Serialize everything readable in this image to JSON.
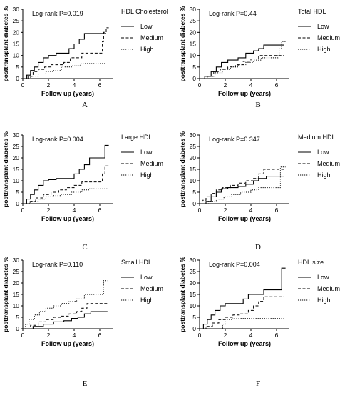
{
  "chart_data": [
    {
      "type": "line",
      "panel_label": "A",
      "annotation": "Log-rank P=0.019",
      "legend_title": "HDL Cholesterol",
      "xlabel": "Follow up (years)",
      "ylabel": "posttransplant diabetes %",
      "xlim": [
        0,
        7
      ],
      "ylim": [
        0,
        30
      ],
      "xticks": [
        0,
        2,
        4,
        6
      ],
      "yticks": [
        0,
        5,
        10,
        15,
        20,
        25,
        30
      ],
      "grid": false,
      "legend_position": "right",
      "series": [
        {
          "name": "Low",
          "style": "solid",
          "points": [
            [
              0,
              0
            ],
            [
              0.3,
              1.5
            ],
            [
              0.6,
              3.5
            ],
            [
              0.9,
              5
            ],
            [
              1.2,
              7
            ],
            [
              1.6,
              9
            ],
            [
              2.0,
              10
            ],
            [
              2.6,
              11
            ],
            [
              3.2,
              11
            ],
            [
              3.6,
              13
            ],
            [
              4.0,
              15
            ],
            [
              4.4,
              17
            ],
            [
              4.8,
              19.5
            ],
            [
              6.5,
              19.5
            ]
          ]
        },
        {
          "name": "Medium",
          "style": "dashed",
          "points": [
            [
              0,
              0
            ],
            [
              0.4,
              1
            ],
            [
              0.8,
              3
            ],
            [
              1.2,
              4
            ],
            [
              1.7,
              5
            ],
            [
              2.2,
              6
            ],
            [
              3.2,
              7
            ],
            [
              3.7,
              9
            ],
            [
              4.2,
              9
            ],
            [
              4.6,
              11
            ],
            [
              6.1,
              11
            ],
            [
              6.2,
              16
            ],
            [
              6.3,
              20
            ],
            [
              6.5,
              22
            ],
            [
              6.7,
              22
            ]
          ]
        },
        {
          "name": "High",
          "style": "dotted",
          "points": [
            [
              0,
              0
            ],
            [
              0.6,
              1
            ],
            [
              1.2,
              2
            ],
            [
              1.8,
              3
            ],
            [
              2.4,
              3.5
            ],
            [
              3.0,
              5
            ],
            [
              3.8,
              5.5
            ],
            [
              4.5,
              6.5
            ],
            [
              6.5,
              6.5
            ]
          ]
        }
      ]
    },
    {
      "type": "line",
      "panel_label": "B",
      "annotation": "Log-rank P=0.44",
      "legend_title": "Total HDL",
      "xlabel": "Follow up (years)",
      "ylabel": "posttransplant diabetes %",
      "xlim": [
        0,
        7
      ],
      "ylim": [
        0,
        30
      ],
      "xticks": [
        0,
        2,
        4,
        6
      ],
      "yticks": [
        0,
        5,
        10,
        15,
        20,
        25,
        30
      ],
      "grid": false,
      "legend_position": "right",
      "series": [
        {
          "name": "Low",
          "style": "solid",
          "points": [
            [
              0,
              0
            ],
            [
              0.4,
              1
            ],
            [
              0.9,
              3
            ],
            [
              1.3,
              5
            ],
            [
              1.7,
              7
            ],
            [
              2.2,
              8
            ],
            [
              3.0,
              9
            ],
            [
              3.6,
              11
            ],
            [
              4.2,
              12
            ],
            [
              4.6,
              13
            ],
            [
              5.0,
              14.5
            ],
            [
              6.6,
              14.5
            ]
          ]
        },
        {
          "name": "Medium",
          "style": "dashed",
          "points": [
            [
              0,
              0
            ],
            [
              0.6,
              1
            ],
            [
              1.1,
              3
            ],
            [
              1.6,
              4
            ],
            [
              2.2,
              5
            ],
            [
              2.8,
              6
            ],
            [
              3.4,
              7.5
            ],
            [
              4.0,
              8.5
            ],
            [
              4.6,
              10
            ],
            [
              6.6,
              10
            ]
          ]
        },
        {
          "name": "High",
          "style": "dotted",
          "points": [
            [
              0,
              0
            ],
            [
              0.6,
              1
            ],
            [
              1.2,
              2.5
            ],
            [
              1.8,
              4
            ],
            [
              2.4,
              5
            ],
            [
              3.0,
              6
            ],
            [
              3.6,
              7
            ],
            [
              4.2,
              8
            ],
            [
              4.8,
              9
            ],
            [
              6.1,
              10
            ],
            [
              6.2,
              13
            ],
            [
              6.4,
              16
            ],
            [
              6.7,
              16
            ]
          ]
        }
      ]
    },
    {
      "type": "line",
      "panel_label": "C",
      "annotation": "Log-rank P=0.004",
      "legend_title": "Large HDL",
      "xlabel": "Follow up (years)",
      "ylabel": "posttransplant diabetes %",
      "xlim": [
        0,
        7
      ],
      "ylim": [
        0,
        30
      ],
      "xticks": [
        0,
        2,
        4,
        6
      ],
      "yticks": [
        0,
        5,
        10,
        15,
        20,
        25,
        30
      ],
      "grid": false,
      "legend_position": "right",
      "series": [
        {
          "name": "Low",
          "style": "solid",
          "points": [
            [
              0,
              0
            ],
            [
              0.3,
              2
            ],
            [
              0.6,
              4
            ],
            [
              0.9,
              6
            ],
            [
              1.2,
              8
            ],
            [
              1.6,
              10
            ],
            [
              2.0,
              10.5
            ],
            [
              2.6,
              11
            ],
            [
              3.4,
              11
            ],
            [
              4.0,
              13
            ],
            [
              4.4,
              15
            ],
            [
              4.8,
              17
            ],
            [
              5.2,
              20
            ],
            [
              6.3,
              20
            ],
            [
              6.4,
              25.5
            ],
            [
              6.7,
              25.5
            ]
          ]
        },
        {
          "name": "Medium",
          "style": "dashed",
          "points": [
            [
              0,
              0
            ],
            [
              0.5,
              1
            ],
            [
              1.0,
              2.5
            ],
            [
              1.6,
              4
            ],
            [
              2.2,
              5
            ],
            [
              2.8,
              6
            ],
            [
              3.4,
              7
            ],
            [
              4.0,
              8
            ],
            [
              4.6,
              9.5
            ],
            [
              6.1,
              9.5
            ],
            [
              6.2,
              13
            ],
            [
              6.4,
              16.5
            ],
            [
              6.7,
              16.5
            ]
          ]
        },
        {
          "name": "High",
          "style": "dotted",
          "points": [
            [
              0,
              0
            ],
            [
              0.6,
              1
            ],
            [
              1.2,
              2
            ],
            [
              1.8,
              3
            ],
            [
              2.4,
              3.5
            ],
            [
              3.0,
              4
            ],
            [
              3.8,
              5
            ],
            [
              4.6,
              6
            ],
            [
              5.2,
              6.5
            ],
            [
              6.6,
              6.5
            ]
          ]
        }
      ]
    },
    {
      "type": "line",
      "panel_label": "D",
      "annotation": "Log-rank P=0.347",
      "legend_title": "Medium HDL",
      "xlabel": "Follow up (years)",
      "ylabel": "posttransplant diabetes %",
      "xlim": [
        0,
        7
      ],
      "ylim": [
        0,
        30
      ],
      "xticks": [
        0,
        2,
        4,
        6
      ],
      "yticks": [
        0,
        5,
        10,
        15,
        20,
        25,
        30
      ],
      "grid": false,
      "legend_position": "right",
      "series": [
        {
          "name": "Low",
          "style": "solid",
          "points": [
            [
              0,
              0
            ],
            [
              0.5,
              1
            ],
            [
              0.9,
              3
            ],
            [
              1.3,
              5
            ],
            [
              1.7,
              6.5
            ],
            [
              2.2,
              7
            ],
            [
              3.0,
              7.5
            ],
            [
              3.6,
              8.5
            ],
            [
              4.2,
              10
            ],
            [
              4.6,
              11
            ],
            [
              5.2,
              12
            ],
            [
              6.6,
              12
            ]
          ]
        },
        {
          "name": "Medium",
          "style": "dashed",
          "points": [
            [
              0,
              0
            ],
            [
              0.2,
              1.5
            ],
            [
              0.5,
              3
            ],
            [
              0.9,
              4.5
            ],
            [
              1.3,
              6
            ],
            [
              1.8,
              7
            ],
            [
              2.4,
              8
            ],
            [
              3.0,
              9
            ],
            [
              3.6,
              10
            ],
            [
              4.2,
              11
            ],
            [
              4.6,
              13
            ],
            [
              5.0,
              15
            ],
            [
              6.6,
              15
            ]
          ]
        },
        {
          "name": "High",
          "style": "dotted",
          "points": [
            [
              0,
              0
            ],
            [
              0.7,
              1
            ],
            [
              1.3,
              2
            ],
            [
              1.9,
              3
            ],
            [
              2.5,
              4
            ],
            [
              3.2,
              5
            ],
            [
              4.0,
              6
            ],
            [
              4.6,
              7
            ],
            [
              6.2,
              7
            ],
            [
              6.3,
              16
            ],
            [
              6.7,
              16
            ]
          ]
        }
      ]
    },
    {
      "type": "line",
      "panel_label": "E",
      "annotation": "Log-rank P=0.110",
      "legend_title": "Small HDL",
      "xlabel": "Follow up (years)",
      "ylabel": "posttransplant diabetes %",
      "xlim": [
        0,
        7
      ],
      "ylim": [
        0,
        30
      ],
      "xticks": [
        0,
        2,
        4,
        6
      ],
      "yticks": [
        0,
        5,
        10,
        15,
        20,
        25,
        30
      ],
      "grid": false,
      "legend_position": "right",
      "series": [
        {
          "name": "Low",
          "style": "solid",
          "points": [
            [
              0,
              0
            ],
            [
              0.8,
              1
            ],
            [
              1.6,
              2
            ],
            [
              2.4,
              3
            ],
            [
              3.2,
              3.5
            ],
            [
              3.8,
              4.5
            ],
            [
              4.3,
              5
            ],
            [
              4.8,
              6.5
            ],
            [
              5.3,
              7.5
            ],
            [
              6.6,
              7.5
            ]
          ]
        },
        {
          "name": "Medium",
          "style": "dashed",
          "points": [
            [
              0,
              0
            ],
            [
              0.6,
              1.5
            ],
            [
              1.2,
              3
            ],
            [
              1.8,
              4
            ],
            [
              2.4,
              5
            ],
            [
              3.0,
              5.5
            ],
            [
              3.6,
              6.5
            ],
            [
              4.2,
              7.5
            ],
            [
              4.6,
              9
            ],
            [
              5.0,
              11
            ],
            [
              6.6,
              11
            ]
          ]
        },
        {
          "name": "High",
          "style": "dotted",
          "points": [
            [
              0,
              0
            ],
            [
              0.2,
              2
            ],
            [
              0.5,
              4
            ],
            [
              0.9,
              6
            ],
            [
              1.3,
              7.5
            ],
            [
              1.8,
              9
            ],
            [
              2.4,
              10
            ],
            [
              3.0,
              11
            ],
            [
              3.6,
              12
            ],
            [
              4.2,
              13
            ],
            [
              4.8,
              15
            ],
            [
              6.1,
              15
            ],
            [
              6.3,
              21
            ],
            [
              6.7,
              21
            ]
          ]
        }
      ]
    },
    {
      "type": "line",
      "panel_label": "F",
      "annotation": "Log-rank P=0.004",
      "legend_title": "HDL size",
      "xlabel": "Follow up (years)",
      "ylabel": "posttransplant diabetes %",
      "xlim": [
        0,
        7
      ],
      "ylim": [
        0,
        30
      ],
      "xticks": [
        0,
        2,
        4,
        6
      ],
      "yticks": [
        0,
        5,
        10,
        15,
        20,
        25,
        30
      ],
      "grid": false,
      "legend_position": "right",
      "series": [
        {
          "name": "Low",
          "style": "solid",
          "points": [
            [
              0,
              0
            ],
            [
              0.3,
              2
            ],
            [
              0.6,
              4
            ],
            [
              0.9,
              6
            ],
            [
              1.2,
              8
            ],
            [
              1.6,
              10
            ],
            [
              2.0,
              11
            ],
            [
              2.8,
              11
            ],
            [
              3.4,
              13
            ],
            [
              3.8,
              15
            ],
            [
              4.6,
              15
            ],
            [
              5.0,
              17
            ],
            [
              6.2,
              17
            ],
            [
              6.4,
              26.5
            ],
            [
              6.7,
              26.5
            ]
          ]
        },
        {
          "name": "Medium",
          "style": "dashed",
          "points": [
            [
              0,
              0
            ],
            [
              0.5,
              1
            ],
            [
              1.0,
              2.5
            ],
            [
              1.5,
              4
            ],
            [
              2.0,
              5
            ],
            [
              2.6,
              6
            ],
            [
              3.2,
              6.5
            ],
            [
              3.8,
              8
            ],
            [
              4.2,
              10
            ],
            [
              4.6,
              12
            ],
            [
              5.0,
              14
            ],
            [
              6.6,
              14
            ]
          ]
        },
        {
          "name": "High",
          "style": "dotted",
          "points": [
            [
              0,
              0
            ],
            [
              1.6,
              0
            ],
            [
              1.8,
              2
            ],
            [
              2.0,
              4
            ],
            [
              2.6,
              4.5
            ],
            [
              6.6,
              4.5
            ]
          ]
        }
      ]
    }
  ]
}
